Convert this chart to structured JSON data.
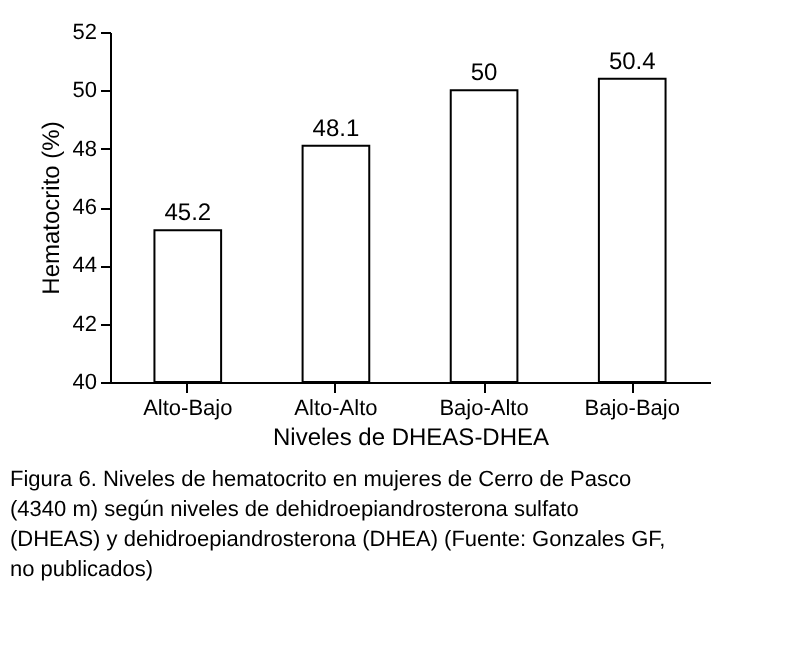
{
  "chart_data": {
    "type": "bar",
    "categories": [
      "Alto-Bajo",
      "Alto-Alto",
      "Bajo-Alto",
      "Bajo-Bajo"
    ],
    "values": [
      45.2,
      48.1,
      50,
      50.4
    ],
    "color": "#ffffff",
    "xlabel": "Niveles de DHEAS-DHEA",
    "ylabel": "Hematocrito (%)",
    "ylim": [
      40,
      52
    ],
    "yticks": [
      40,
      42,
      44,
      46,
      48,
      50,
      52
    ],
    "data_labels": true,
    "grid": false,
    "annotations": [
      "Figura 6. Niveles de hematocrito en mujeres de Cerro de Pasco (4340 m) según niveles de dehidroepiandrosterona sulfato (DHEAS) y dehidroepiandrosterona (DHEA) (Fuente: Gonzales GF, no publicados)"
    ]
  }
}
